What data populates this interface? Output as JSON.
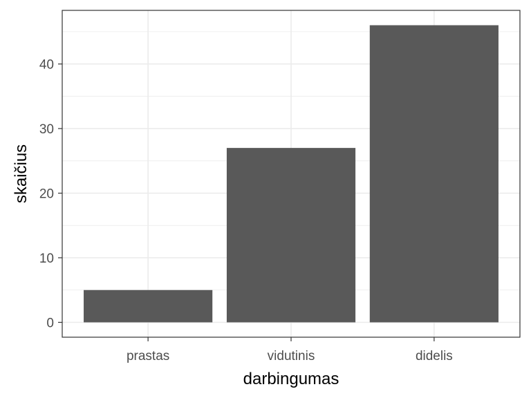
{
  "chart_data": {
    "type": "bar",
    "categories": [
      "prastas",
      "vidutinis",
      "didelis"
    ],
    "values": [
      5,
      27,
      46
    ],
    "xlabel": "darbingumas",
    "ylabel": "skaičius",
    "ylim": [
      -2.3,
      48.3
    ],
    "yticks": [
      0,
      10,
      20,
      30,
      40
    ],
    "grid": true,
    "bar_color": "#595959",
    "panel_border_color": "#333333",
    "grid_color": "#ebebeb"
  }
}
